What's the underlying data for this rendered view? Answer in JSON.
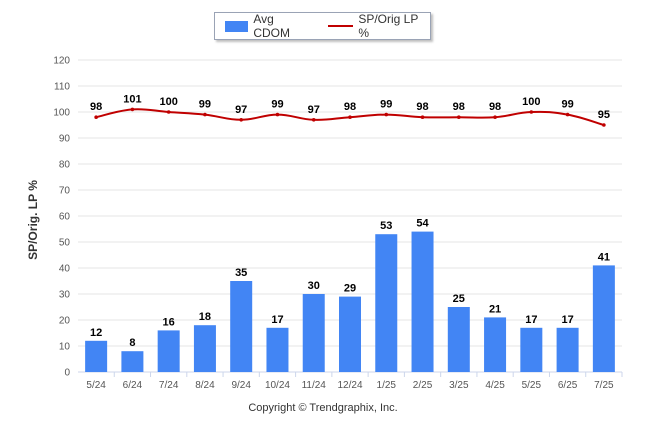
{
  "legend": {
    "bar_label": "Avg CDOM",
    "line_label": "SP/Orig LP %"
  },
  "copyright": "Copyright © Trendgraphix, Inc.",
  "colors": {
    "bar": "#4285f4",
    "line": "#c00000",
    "grid": "#e6e6e6"
  },
  "chart_data": {
    "type": "bar",
    "categories": [
      "5/24",
      "6/24",
      "7/24",
      "8/24",
      "9/24",
      "10/24",
      "11/24",
      "12/24",
      "1/25",
      "2/25",
      "3/25",
      "4/25",
      "5/25",
      "6/25",
      "7/25"
    ],
    "series": [
      {
        "name": "Avg CDOM",
        "type": "bar",
        "values": [
          12,
          8,
          16,
          18,
          35,
          17,
          30,
          29,
          53,
          54,
          25,
          21,
          17,
          17,
          41
        ]
      },
      {
        "name": "SP/Orig LP %",
        "type": "line",
        "values": [
          98,
          101,
          100,
          99,
          97,
          99,
          97,
          98,
          99,
          98,
          98,
          98,
          100,
          99,
          95
        ]
      }
    ],
    "ylabel": "SP/Orig. LP %",
    "ylim": [
      0,
      120
    ],
    "yticks": [
      0,
      10,
      20,
      30,
      40,
      50,
      60,
      70,
      80,
      90,
      100,
      110,
      120
    ],
    "grid": true,
    "legend_position": "top-center"
  }
}
